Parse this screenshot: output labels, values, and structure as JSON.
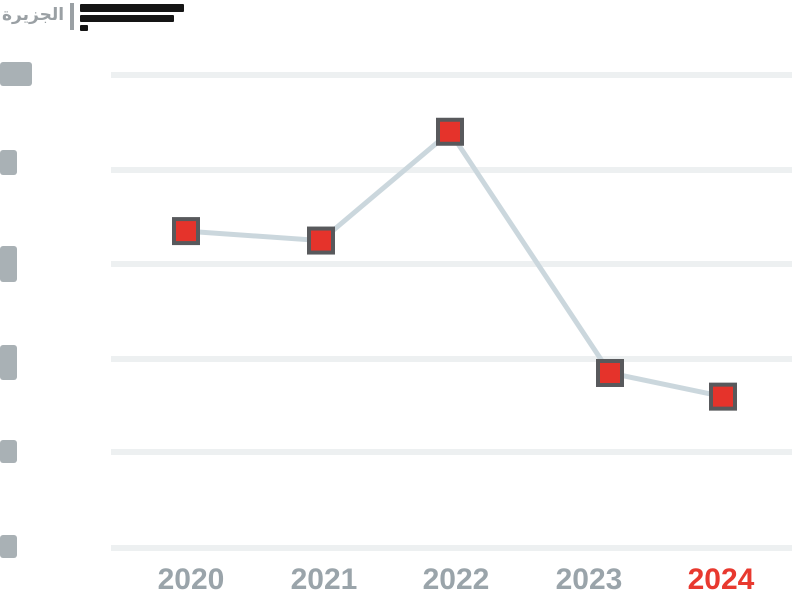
{
  "header": {
    "logo_text": "الجزيرة"
  },
  "chart_data": {
    "type": "line",
    "title": "",
    "categories": [
      "2020",
      "2021",
      "2022",
      "2023",
      "2024"
    ],
    "values": [
      6.7,
      6.5,
      8.8,
      3.7,
      3.2
    ],
    "xlabel": "",
    "ylabel": "",
    "ylim": [
      0,
      10
    ],
    "y_gridline_count": 6,
    "grid": "horizontal",
    "legend": "none",
    "highlight_category": "2024",
    "marker": "square"
  },
  "colors": {
    "background": "#ffffff",
    "grid": "#edf0f1",
    "line": "#cbd7dd",
    "marker_fill": "#e5332b",
    "marker_stroke": "#58595c",
    "x_label": "#9aa4aa",
    "x_label_highlight": "#e8392f",
    "y_blob": "#a9b1b5",
    "logo": "#9aa0a4",
    "title_bar": "#151515"
  }
}
